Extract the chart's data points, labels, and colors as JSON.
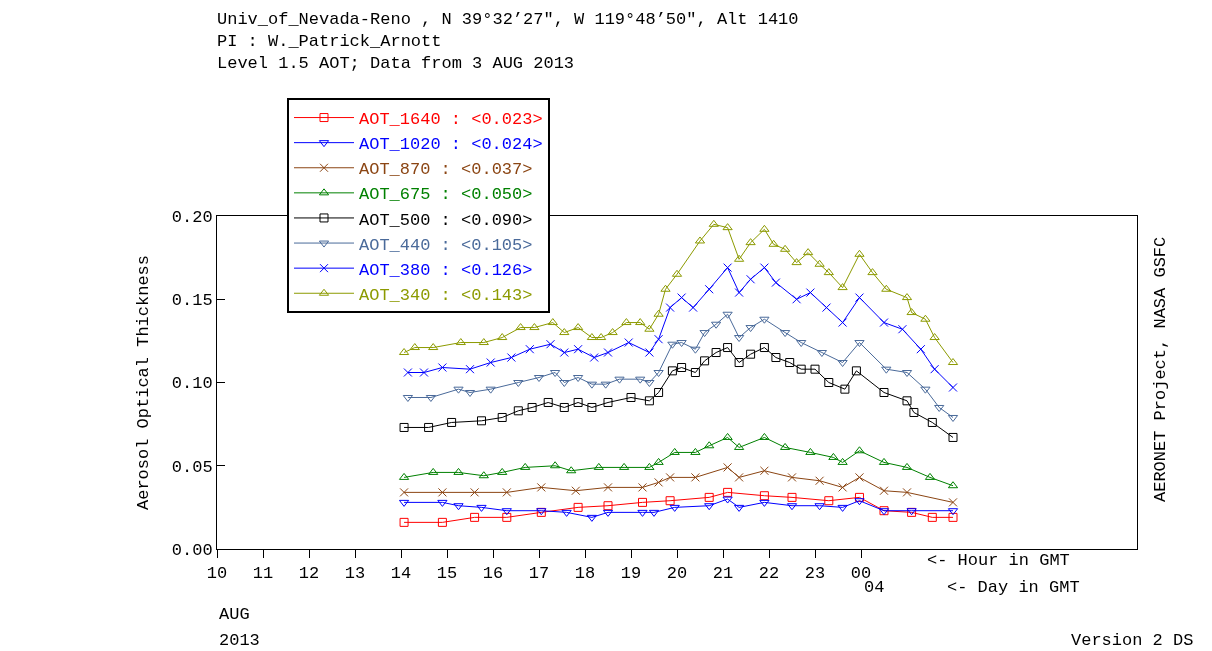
{
  "chart_data": {
    "type": "line",
    "title": "Univ_of_Nevada-Reno , N 39°32’27\", W 119°48’50\", Alt 1410",
    "subtitle": "PI : W._Patrick_Arnott\nLevel 1.5 AOT; Data from 3 AUG 2013",
    "ylabel": "Aerosol Optical Thickness",
    "annotations": [
      "04",
      "<- Hour in GMT",
      "<- Day in GMT",
      "AUG",
      "2013",
      "Version 2 DS",
      "AERONET Project, NASA GSFC"
    ],
    "xlim": [
      "2013-08-03T10:00",
      "2013-08-04T06:00"
    ],
    "xticks": [
      {
        "value": "2013-08-03T10:00",
        "label": "10"
      },
      {
        "value": "2013-08-03T11:00",
        "label": "11"
      },
      {
        "value": "2013-08-03T12:00",
        "label": "12"
      },
      {
        "value": "2013-08-03T13:00",
        "label": "13"
      },
      {
        "value": "2013-08-03T14:00",
        "label": "14"
      },
      {
        "value": "2013-08-03T15:00",
        "label": "15"
      },
      {
        "value": "2013-08-03T16:00",
        "label": "16"
      },
      {
        "value": "2013-08-03T17:00",
        "label": "17"
      },
      {
        "value": "2013-08-03T18:00",
        "label": "18"
      },
      {
        "value": "2013-08-03T19:00",
        "label": "19"
      },
      {
        "value": "2013-08-03T20:00",
        "label": "20"
      },
      {
        "value": "2013-08-03T21:00",
        "label": "21"
      },
      {
        "value": "2013-08-03T22:00",
        "label": "22"
      },
      {
        "value": "2013-08-03T23:00",
        "label": "23"
      },
      {
        "value": "2013-08-04T00:00",
        "label": "00"
      }
    ],
    "ylim": [
      0,
      0.2
    ],
    "yticks": [
      {
        "value": 0,
        "label": "0.00"
      },
      {
        "value": 0.05,
        "label": "0.05"
      },
      {
        "value": 0.1,
        "label": "0.10"
      },
      {
        "value": 0.15,
        "label": "0.15"
      },
      {
        "value": 0.2,
        "label": "0.20"
      }
    ],
    "legend": "top left",
    "line_style": "solid",
    "series": [
      {
        "name": "AOT_1640 : <0.023>",
        "color": "#ff0000",
        "marker": "square",
        "x": [
          "2013-08-03T14:04",
          "2013-08-03T14:54",
          "2013-08-03T15:36",
          "2013-08-03T16:18",
          "2013-08-03T17:03",
          "2013-08-03T17:51",
          "2013-08-03T18:30",
          "2013-08-03T19:15",
          "2013-08-03T19:51",
          "2013-08-03T20:42",
          "2013-08-03T21:06",
          "2013-08-03T21:54",
          "2013-08-03T22:30",
          "2013-08-03T23:18",
          "2013-08-03T23:58",
          "2013-08-04T00:30",
          "2013-08-04T01:06",
          "2013-08-04T01:33",
          "2013-08-04T02:00"
        ],
        "values": [
          0.016,
          0.016,
          0.019,
          0.019,
          0.022,
          0.025,
          0.026,
          0.028,
          0.029,
          0.031,
          0.034,
          0.032,
          0.031,
          0.029,
          0.031,
          0.023,
          0.022,
          0.019,
          0.019
        ]
      },
      {
        "name": "AOT_1020 : <0.024>",
        "color": "#0000ff",
        "marker": "triangle-down",
        "x": [
          "2013-08-03T14:04",
          "2013-08-03T14:54",
          "2013-08-03T15:15",
          "2013-08-03T15:45",
          "2013-08-03T16:18",
          "2013-08-03T17:03",
          "2013-08-03T17:36",
          "2013-08-03T18:09",
          "2013-08-03T18:30",
          "2013-08-03T19:15",
          "2013-08-03T19:30",
          "2013-08-03T19:57",
          "2013-08-03T20:42",
          "2013-08-03T21:06",
          "2013-08-03T21:21",
          "2013-08-03T21:54",
          "2013-08-03T22:30",
          "2013-08-03T23:06",
          "2013-08-03T23:36",
          "2013-08-03T23:58",
          "2013-08-04T00:30",
          "2013-08-04T01:06",
          "2013-08-04T02:00"
        ],
        "values": [
          0.028,
          0.028,
          0.026,
          0.025,
          0.023,
          0.023,
          0.022,
          0.019,
          0.022,
          0.022,
          0.022,
          0.025,
          0.026,
          0.03,
          0.025,
          0.028,
          0.026,
          0.026,
          0.025,
          0.029,
          0.023,
          0.023,
          0.023
        ]
      },
      {
        "name": "AOT_870 : <0.037>",
        "color": "#8b4513",
        "marker": "cross",
        "x": [
          "2013-08-03T14:04",
          "2013-08-03T14:54",
          "2013-08-03T15:36",
          "2013-08-03T16:18",
          "2013-08-03T17:03",
          "2013-08-03T17:48",
          "2013-08-03T18:30",
          "2013-08-03T19:15",
          "2013-08-03T19:36",
          "2013-08-03T19:51",
          "2013-08-03T20:24",
          "2013-08-03T21:06",
          "2013-08-03T21:21",
          "2013-08-03T21:54",
          "2013-08-03T22:30",
          "2013-08-03T23:06",
          "2013-08-03T23:36",
          "2013-08-03T23:58",
          "2013-08-04T00:30",
          "2013-08-04T01:00",
          "2013-08-04T02:00"
        ],
        "values": [
          0.034,
          0.034,
          0.034,
          0.034,
          0.037,
          0.035,
          0.037,
          0.037,
          0.04,
          0.043,
          0.043,
          0.049,
          0.043,
          0.047,
          0.043,
          0.041,
          0.037,
          0.043,
          0.035,
          0.034,
          0.028
        ]
      },
      {
        "name": "AOT_675 : <0.050>",
        "color": "#008000",
        "marker": "triangle",
        "x": [
          "2013-08-03T14:04",
          "2013-08-03T14:42",
          "2013-08-03T15:15",
          "2013-08-03T15:48",
          "2013-08-03T16:12",
          "2013-08-03T16:42",
          "2013-08-03T17:21",
          "2013-08-03T17:42",
          "2013-08-03T18:18",
          "2013-08-03T18:51",
          "2013-08-03T19:24",
          "2013-08-03T19:36",
          "2013-08-03T19:57",
          "2013-08-03T20:24",
          "2013-08-03T20:42",
          "2013-08-03T21:06",
          "2013-08-03T21:21",
          "2013-08-03T21:54",
          "2013-08-03T22:21",
          "2013-08-03T22:54",
          "2013-08-03T23:24",
          "2013-08-03T23:36",
          "2013-08-03T23:58",
          "2013-08-04T00:30",
          "2013-08-04T01:00",
          "2013-08-04T01:30",
          "2013-08-04T02:00"
        ],
        "values": [
          0.043,
          0.046,
          0.046,
          0.044,
          0.046,
          0.049,
          0.05,
          0.047,
          0.049,
          0.049,
          0.049,
          0.052,
          0.058,
          0.058,
          0.062,
          0.067,
          0.061,
          0.067,
          0.061,
          0.058,
          0.055,
          0.052,
          0.059,
          0.052,
          0.049,
          0.043,
          0.038
        ]
      },
      {
        "name": "AOT_500 : <0.090>",
        "color": "#000000",
        "marker": "square",
        "x": [
          "2013-08-03T14:04",
          "2013-08-03T14:36",
          "2013-08-03T15:06",
          "2013-08-03T15:45",
          "2013-08-03T16:12",
          "2013-08-03T16:33",
          "2013-08-03T16:51",
          "2013-08-03T17:12",
          "2013-08-03T17:33",
          "2013-08-03T17:51",
          "2013-08-03T18:09",
          "2013-08-03T18:30",
          "2013-08-03T19:00",
          "2013-08-03T19:24",
          "2013-08-03T19:36",
          "2013-08-03T19:54",
          "2013-08-03T20:06",
          "2013-08-03T20:24",
          "2013-08-03T20:36",
          "2013-08-03T20:51",
          "2013-08-03T21:06",
          "2013-08-03T21:21",
          "2013-08-03T21:36",
          "2013-08-03T21:54",
          "2013-08-03T22:09",
          "2013-08-03T22:27",
          "2013-08-03T22:42",
          "2013-08-03T23:00",
          "2013-08-03T23:18",
          "2013-08-03T23:39",
          "2013-08-03T23:54",
          "2013-08-04T00:30",
          "2013-08-04T01:00",
          "2013-08-04T01:09",
          "2013-08-04T01:33",
          "2013-08-04T02:00"
        ],
        "values": [
          0.073,
          0.073,
          0.076,
          0.077,
          0.079,
          0.083,
          0.085,
          0.088,
          0.085,
          0.088,
          0.085,
          0.088,
          0.091,
          0.089,
          0.094,
          0.107,
          0.109,
          0.106,
          0.113,
          0.118,
          0.121,
          0.112,
          0.117,
          0.121,
          0.115,
          0.112,
          0.108,
          0.108,
          0.1,
          0.096,
          0.107,
          0.094,
          0.089,
          0.082,
          0.076,
          0.067
        ]
      },
      {
        "name": "AOT_440 : <0.105>",
        "color": "#4a6a9a",
        "marker": "triangle-down",
        "x": [
          "2013-08-03T14:09",
          "2013-08-03T14:39",
          "2013-08-03T15:15",
          "2013-08-03T15:30",
          "2013-08-03T15:57",
          "2013-08-03T16:33",
          "2013-08-03T17:00",
          "2013-08-03T17:21",
          "2013-08-03T17:33",
          "2013-08-03T17:51",
          "2013-08-03T18:09",
          "2013-08-03T18:27",
          "2013-08-03T18:45",
          "2013-08-03T19:12",
          "2013-08-03T19:24",
          "2013-08-03T19:36",
          "2013-08-03T19:54",
          "2013-08-03T20:06",
          "2013-08-03T20:24",
          "2013-08-03T20:36",
          "2013-08-03T20:51",
          "2013-08-03T21:06",
          "2013-08-03T21:21",
          "2013-08-03T21:36",
          "2013-08-03T21:54",
          "2013-08-03T22:21",
          "2013-08-03T22:42",
          "2013-08-03T23:09",
          "2013-08-03T23:36",
          "2013-08-03T23:58",
          "2013-08-04T00:33",
          "2013-08-04T01:00",
          "2013-08-04T01:24",
          "2013-08-04T01:42",
          "2013-08-04T02:00"
        ],
        "values": [
          0.091,
          0.091,
          0.096,
          0.094,
          0.096,
          0.1,
          0.103,
          0.106,
          0.1,
          0.103,
          0.099,
          0.099,
          0.102,
          0.102,
          0.1,
          0.106,
          0.123,
          0.124,
          0.12,
          0.13,
          0.135,
          0.141,
          0.127,
          0.133,
          0.138,
          0.13,
          0.124,
          0.118,
          0.112,
          0.124,
          0.108,
          0.106,
          0.096,
          0.085,
          0.079
        ]
      },
      {
        "name": "AOT_380 : <0.126>",
        "color": "#0000ff",
        "marker": "cross",
        "x": [
          "2013-08-03T14:09",
          "2013-08-03T14:30",
          "2013-08-03T14:54",
          "2013-08-03T15:30",
          "2013-08-03T15:57",
          "2013-08-03T16:24",
          "2013-08-03T16:48",
          "2013-08-03T17:15",
          "2013-08-03T17:33",
          "2013-08-03T17:51",
          "2013-08-03T18:12",
          "2013-08-03T18:30",
          "2013-08-03T18:57",
          "2013-08-03T19:24",
          "2013-08-03T19:36",
          "2013-08-03T19:51",
          "2013-08-03T20:06",
          "2013-08-03T20:21",
          "2013-08-03T20:42",
          "2013-08-03T21:06",
          "2013-08-03T21:21",
          "2013-08-03T21:36",
          "2013-08-03T21:54",
          "2013-08-03T22:09",
          "2013-08-03T22:36",
          "2013-08-03T22:54",
          "2013-08-03T23:15",
          "2013-08-03T23:36",
          "2013-08-03T23:58",
          "2013-08-04T00:30",
          "2013-08-04T00:54",
          "2013-08-04T01:18",
          "2013-08-04T01:36",
          "2013-08-04T02:00"
        ],
        "values": [
          0.106,
          0.106,
          0.109,
          0.108,
          0.112,
          0.115,
          0.12,
          0.123,
          0.118,
          0.12,
          0.115,
          0.118,
          0.124,
          0.118,
          0.126,
          0.145,
          0.151,
          0.145,
          0.156,
          0.169,
          0.154,
          0.162,
          0.169,
          0.16,
          0.15,
          0.154,
          0.145,
          0.136,
          0.151,
          0.136,
          0.132,
          0.12,
          0.108,
          0.097
        ]
      },
      {
        "name": "AOT_340 : <0.143>",
        "color": "#8c9a00",
        "marker": "triangle",
        "x": [
          "2013-08-03T14:04",
          "2013-08-03T14:18",
          "2013-08-03T14:42",
          "2013-08-03T15:18",
          "2013-08-03T15:48",
          "2013-08-03T16:12",
          "2013-08-03T16:36",
          "2013-08-03T16:54",
          "2013-08-03T17:18",
          "2013-08-03T17:33",
          "2013-08-03T17:51",
          "2013-08-03T18:09",
          "2013-08-03T18:21",
          "2013-08-03T18:36",
          "2013-08-03T18:54",
          "2013-08-03T19:12",
          "2013-08-03T19:24",
          "2013-08-03T19:36",
          "2013-08-03T19:45",
          "2013-08-03T20:00",
          "2013-08-03T20:30",
          "2013-08-03T20:48",
          "2013-08-03T21:06",
          "2013-08-03T21:21",
          "2013-08-03T21:36",
          "2013-08-03T21:54",
          "2013-08-03T22:06",
          "2013-08-03T22:21",
          "2013-08-03T22:36",
          "2013-08-03T22:51",
          "2013-08-03T23:06",
          "2013-08-03T23:18",
          "2013-08-03T23:36",
          "2013-08-03T23:58",
          "2013-08-04T00:15",
          "2013-08-04T00:33",
          "2013-08-04T01:00",
          "2013-08-04T01:06",
          "2013-08-04T01:24",
          "2013-08-04T01:36",
          "2013-08-04T02:00"
        ],
        "values": [
          0.118,
          0.121,
          0.121,
          0.124,
          0.124,
          0.127,
          0.133,
          0.133,
          0.136,
          0.13,
          0.133,
          0.127,
          0.127,
          0.13,
          0.136,
          0.136,
          0.132,
          0.141,
          0.156,
          0.165,
          0.185,
          0.195,
          0.193,
          0.174,
          0.184,
          0.192,
          0.183,
          0.18,
          0.172,
          0.178,
          0.171,
          0.166,
          0.157,
          0.177,
          0.166,
          0.156,
          0.151,
          0.142,
          0.138,
          0.127,
          0.112
        ]
      }
    ]
  }
}
